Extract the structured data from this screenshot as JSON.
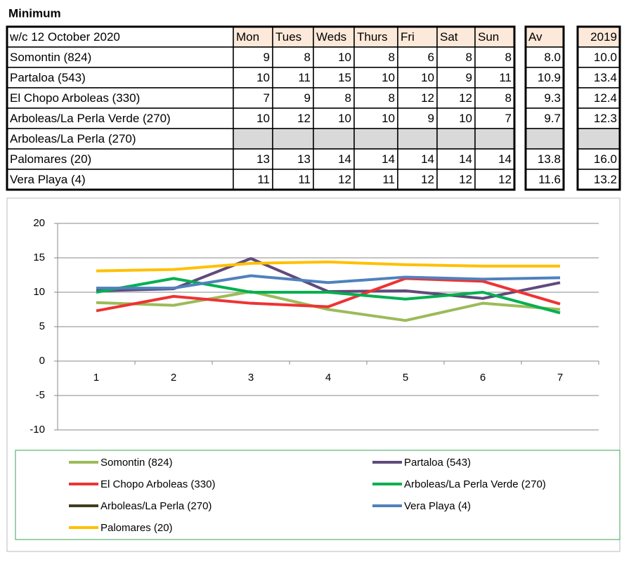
{
  "table": {
    "title": "Minimum",
    "header": [
      "w/c 12 October 2020",
      "Mon",
      "Tues",
      "Weds",
      "Thurs",
      "Fri",
      "Sat",
      "Sun"
    ],
    "av_header": "Av",
    "year_header": "2019",
    "rows": [
      {
        "name": "Somontin (824)",
        "values": [
          9,
          8,
          10,
          8,
          6,
          8,
          8
        ],
        "av": "8.0",
        "y2019": "10.0"
      },
      {
        "name": "Partaloa (543)",
        "values": [
          10,
          11,
          15,
          10,
          10,
          9,
          11
        ],
        "av": "10.9",
        "y2019": "13.4"
      },
      {
        "name": "El Chopo Arboleas (330)",
        "values": [
          7,
          9,
          8,
          8,
          12,
          12,
          8
        ],
        "av": "9.3",
        "y2019": "12.4"
      },
      {
        "name": "Arboleas/La Perla Verde (270)",
        "values": [
          10,
          12,
          10,
          10,
          9,
          10,
          7
        ],
        "av": "9.7",
        "y2019": "12.3"
      },
      {
        "name": "Arboleas/La Perla (270)",
        "values": [
          null,
          null,
          null,
          null,
          null,
          null,
          null
        ],
        "av": null,
        "y2019": null
      },
      {
        "name": "Palomares (20)",
        "values": [
          13,
          13,
          14,
          14,
          14,
          14,
          14
        ],
        "av": "13.8",
        "y2019": "16.0"
      },
      {
        "name": "Vera Playa (4)",
        "values": [
          11,
          11,
          12,
          11,
          12,
          12,
          12
        ],
        "av": "11.6",
        "y2019": "13.2"
      }
    ]
  },
  "chart_data": {
    "type": "line",
    "categories": [
      1,
      2,
      3,
      4,
      5,
      6,
      7
    ],
    "ylim": [
      -10,
      20
    ],
    "yticks": [
      -10,
      -5,
      0,
      5,
      10,
      15,
      20
    ],
    "grid": true,
    "series": [
      {
        "name": "Somontin (824)",
        "color": "#9bbb59",
        "values": [
          8.5,
          8.1,
          10.1,
          7.5,
          5.9,
          8.4,
          7.5
        ]
      },
      {
        "name": "Partaloa (543)",
        "color": "#604a7b",
        "values": [
          10.2,
          10.5,
          14.9,
          10.1,
          10.2,
          9.1,
          11.4
        ]
      },
      {
        "name": "El Chopo Arboleas (330)",
        "color": "#ee3333",
        "values": [
          7.3,
          9.4,
          8.4,
          7.9,
          12.0,
          11.6,
          8.3
        ]
      },
      {
        "name": "Arboleas/La Perla Verde (270)",
        "color": "#00b050",
        "values": [
          10.0,
          12.0,
          10.0,
          10.0,
          9.0,
          10.0,
          7.0
        ]
      },
      {
        "name": "Arboleas/La Perla (270)",
        "color": "#403c1e",
        "values": [
          null,
          null,
          null,
          null,
          null,
          null,
          null
        ]
      },
      {
        "name": "Vera Playa (4)",
        "color": "#4f81bd",
        "values": [
          10.6,
          10.6,
          12.4,
          11.4,
          12.2,
          11.9,
          12.1
        ]
      },
      {
        "name": "Palomares (20)",
        "color": "#ffc000",
        "values": [
          13.1,
          13.3,
          14.2,
          14.4,
          14.0,
          13.8,
          13.8
        ]
      }
    ]
  }
}
